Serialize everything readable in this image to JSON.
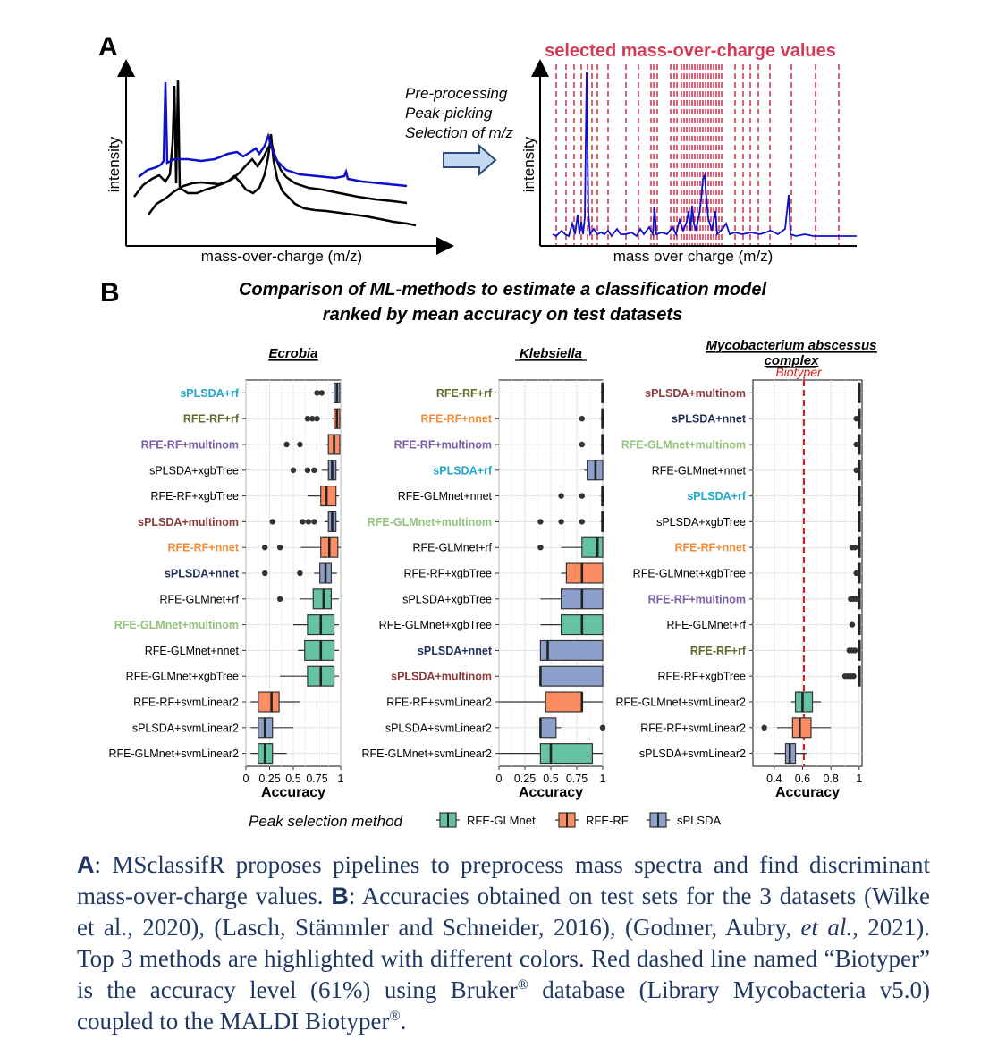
{
  "panel_a": {
    "label": "A",
    "spectra_xlabel": "mass-over-charge (m/z)",
    "spectra_ylabel": "intensity",
    "steps": [
      "Pre-processing",
      "Peak-picking",
      "Selection of m/z"
    ],
    "selected_title": "selected mass-over-charge values",
    "selected_xlabel": "mass over charge (m/z)",
    "selected_ylabel": "intensity",
    "colors": {
      "spectrum_blue": "#1010cc",
      "spectrum_black": "#000000",
      "selection_red": "#d63a55",
      "arrow_fill": "#c5d9f1",
      "arrow_stroke": "#2e4a7a"
    }
  },
  "panel_b": {
    "label": "B",
    "title_line1": "Comparison of ML-methods to estimate a classification model",
    "title_line2": "ranked by mean accuracy on test datasets",
    "legend_title": "Peak selection method",
    "legend_items": [
      {
        "key": "glm",
        "label": "RFE-GLMnet",
        "color": "#66c2a5"
      },
      {
        "key": "rf",
        "label": "RFE-RF",
        "color": "#fc8d62"
      },
      {
        "key": "spl",
        "label": "sPLSDA",
        "color": "#8da0cb"
      }
    ],
    "highlight_colors": {
      "cyan": "#1fa7c9",
      "olive": "#5c6b2a",
      "purple": "#7b5ea7",
      "brown": "#8b3a3a",
      "orange": "#f08c3a",
      "navy": "#1f2f5c",
      "green": "#93c47d",
      "default": "#000000"
    }
  },
  "chart_data": [
    {
      "type": "boxplot",
      "title": "Ecrobia",
      "xlabel": "Accuracy",
      "xlim": [
        0,
        1
      ],
      "xticks": [
        "0",
        "0.25",
        "0.5",
        "0.75",
        "1"
      ],
      "rows": [
        {
          "method": "sPLSDA+rf",
          "group": "spl",
          "label_color": "cyan",
          "whisker_low": 0.9,
          "q1": 0.93,
          "median": 0.96,
          "q3": 0.99,
          "whisker_high": 1.0,
          "outliers": [
            0.75,
            0.8
          ]
        },
        {
          "method": "RFE-RF+rf",
          "group": "rf",
          "label_color": "olive",
          "whisker_low": 0.91,
          "q1": 0.93,
          "median": 0.96,
          "q3": 0.99,
          "whisker_high": 1.0,
          "outliers": [
            0.65,
            0.7,
            0.75
          ]
        },
        {
          "method": "RFE-RF+multinom",
          "group": "rf",
          "label_color": "purple",
          "whisker_low": 0.85,
          "q1": 0.87,
          "median": 0.93,
          "q3": 0.99,
          "whisker_high": 1.0,
          "outliers": [
            0.43,
            0.57
          ]
        },
        {
          "method": "sPLSDA+xgbTree",
          "group": "spl",
          "label_color": "default",
          "whisker_low": 0.8,
          "q1": 0.87,
          "median": 0.91,
          "q3": 0.95,
          "whisker_high": 0.98,
          "outliers": [
            0.5,
            0.65,
            0.72
          ]
        },
        {
          "method": "RFE-RF+xgbTree",
          "group": "rf",
          "label_color": "default",
          "whisker_low": 0.65,
          "q1": 0.79,
          "median": 0.85,
          "q3": 0.95,
          "whisker_high": 0.98,
          "outliers": []
        },
        {
          "method": "sPLSDA+multinom",
          "group": "spl",
          "label_color": "brown",
          "whisker_low": 0.83,
          "q1": 0.87,
          "median": 0.91,
          "q3": 0.95,
          "whisker_high": 0.98,
          "outliers": [
            0.28,
            0.6,
            0.66,
            0.72
          ]
        },
        {
          "method": "RFE-RF+nnet",
          "group": "rf",
          "label_color": "orange",
          "whisker_low": 0.58,
          "q1": 0.79,
          "median": 0.88,
          "q3": 0.97,
          "whisker_high": 1.0,
          "outliers": [
            0.2,
            0.36
          ]
        },
        {
          "method": "sPLSDA+nnet",
          "group": "spl",
          "label_color": "navy",
          "whisker_low": 0.72,
          "q1": 0.78,
          "median": 0.84,
          "q3": 0.9,
          "whisker_high": 0.96,
          "outliers": [
            0.2,
            0.57
          ]
        },
        {
          "method": "RFE-GLMnet+rf",
          "group": "glm",
          "label_color": "default",
          "whisker_low": 0.57,
          "q1": 0.71,
          "median": 0.82,
          "q3": 0.9,
          "whisker_high": 0.98,
          "outliers": [
            0.36
          ]
        },
        {
          "method": "RFE-GLMnet+multinom",
          "group": "glm",
          "label_color": "green",
          "whisker_low": 0.5,
          "q1": 0.65,
          "median": 0.79,
          "q3": 0.93,
          "whisker_high": 0.98,
          "outliers": []
        },
        {
          "method": "RFE-GLMnet+nnet",
          "group": "glm",
          "label_color": "default",
          "whisker_low": 0.55,
          "q1": 0.62,
          "median": 0.79,
          "q3": 0.93,
          "whisker_high": 0.98,
          "outliers": []
        },
        {
          "method": "RFE-GLMnet+xgbTree",
          "group": "glm",
          "label_color": "default",
          "whisker_low": 0.36,
          "q1": 0.65,
          "median": 0.79,
          "q3": 0.93,
          "whisker_high": 0.98,
          "outliers": []
        },
        {
          "method": "RFE-RF+svmLinear2",
          "group": "rf",
          "label_color": "default",
          "whisker_low": 0.05,
          "q1": 0.13,
          "median": 0.27,
          "q3": 0.35,
          "whisker_high": 0.57,
          "outliers": []
        },
        {
          "method": "sPLSDA+svmLinear2",
          "group": "spl",
          "label_color": "default",
          "whisker_low": 0.05,
          "q1": 0.13,
          "median": 0.2,
          "q3": 0.28,
          "whisker_high": 0.5,
          "outliers": []
        },
        {
          "method": "RFE-GLMnet+svmLinear2",
          "group": "glm",
          "label_color": "default",
          "whisker_low": 0.05,
          "q1": 0.13,
          "median": 0.2,
          "q3": 0.28,
          "whisker_high": 0.43,
          "outliers": []
        }
      ]
    },
    {
      "type": "boxplot",
      "title": "Klebsiella",
      "xlabel": "Accuracy",
      "xlim": [
        0,
        1
      ],
      "xticks": [
        "0",
        "0.25",
        "0.5",
        "0.75",
        "1"
      ],
      "rows": [
        {
          "method": "RFE-RF+rf",
          "group": "rf",
          "label_color": "olive",
          "whisker_low": 0.98,
          "q1": 0.99,
          "median": 1.0,
          "q3": 1.0,
          "whisker_high": 1.0,
          "outliers": []
        },
        {
          "method": "RFE-RF+nnet",
          "group": "rf",
          "label_color": "orange",
          "whisker_low": 0.98,
          "q1": 0.99,
          "median": 1.0,
          "q3": 1.0,
          "whisker_high": 1.0,
          "outliers": [
            0.8
          ]
        },
        {
          "method": "RFE-RF+multinom",
          "group": "rf",
          "label_color": "purple",
          "whisker_low": 0.98,
          "q1": 0.99,
          "median": 1.0,
          "q3": 1.0,
          "whisker_high": 1.0,
          "outliers": [
            0.8
          ]
        },
        {
          "method": "sPLSDA+rf",
          "group": "spl",
          "label_color": "cyan",
          "whisker_low": 0.82,
          "q1": 0.85,
          "median": 0.93,
          "q3": 1.0,
          "whisker_high": 1.0,
          "outliers": []
        },
        {
          "method": "RFE-GLMnet+nnet",
          "group": "glm",
          "label_color": "default",
          "whisker_low": 0.98,
          "q1": 0.99,
          "median": 1.0,
          "q3": 1.0,
          "whisker_high": 1.0,
          "outliers": [
            0.6,
            0.8
          ]
        },
        {
          "method": "RFE-GLMnet+multinom",
          "group": "glm",
          "label_color": "green",
          "whisker_low": 0.98,
          "q1": 0.99,
          "median": 1.0,
          "q3": 1.0,
          "whisker_high": 1.0,
          "outliers": [
            0.4,
            0.6,
            0.8
          ]
        },
        {
          "method": "RFE-GLMnet+rf",
          "group": "glm",
          "label_color": "default",
          "whisker_low": 0.6,
          "q1": 0.8,
          "median": 0.95,
          "q3": 1.0,
          "whisker_high": 1.0,
          "outliers": [
            0.4
          ]
        },
        {
          "method": "RFE-RF+xgbTree",
          "group": "rf",
          "label_color": "default",
          "whisker_low": 0.6,
          "q1": 0.65,
          "median": 0.8,
          "q3": 1.0,
          "whisker_high": 1.0,
          "outliers": []
        },
        {
          "method": "sPLSDA+xgbTree",
          "group": "spl",
          "label_color": "default",
          "whisker_low": 0.4,
          "q1": 0.6,
          "median": 0.8,
          "q3": 1.0,
          "whisker_high": 1.0,
          "outliers": []
        },
        {
          "method": "RFE-GLMnet+xgbTree",
          "group": "glm",
          "label_color": "default",
          "whisker_low": 0.4,
          "q1": 0.6,
          "median": 0.8,
          "q3": 1.0,
          "whisker_high": 1.0,
          "outliers": []
        },
        {
          "method": "sPLSDA+nnet",
          "group": "spl",
          "label_color": "navy",
          "whisker_low": 0.4,
          "q1": 0.4,
          "median": 0.47,
          "q3": 1.0,
          "whisker_high": 1.0,
          "outliers": []
        },
        {
          "method": "sPLSDA+multinom",
          "group": "spl",
          "label_color": "brown",
          "whisker_low": 0.4,
          "q1": 0.4,
          "median": 0.4,
          "q3": 1.0,
          "whisker_high": 1.0,
          "outliers": []
        },
        {
          "method": "RFE-RF+svmLinear2",
          "group": "rf",
          "label_color": "default",
          "whisker_low": 0.0,
          "q1": 0.45,
          "median": 0.8,
          "q3": 0.8,
          "whisker_high": 1.0,
          "outliers": []
        },
        {
          "method": "sPLSDA+svmLinear2",
          "group": "spl",
          "label_color": "default",
          "whisker_low": 0.4,
          "q1": 0.4,
          "median": 0.4,
          "q3": 0.55,
          "whisker_high": 0.6,
          "outliers": [
            1.0
          ]
        },
        {
          "method": "RFE-GLMnet+svmLinear2",
          "group": "glm",
          "label_color": "default",
          "whisker_low": 0.0,
          "q1": 0.4,
          "median": 0.5,
          "q3": 0.9,
          "whisker_high": 1.0,
          "outliers": []
        }
      ]
    },
    {
      "type": "boxplot",
      "title": "Mycobacterium abscessus complex",
      "title_lines": [
        "Mycobacterium abscessus ",
        "complex"
      ],
      "xlabel": "Accuracy",
      "xlim": [
        0.25,
        1.02
      ],
      "xticks": [
        "0.4",
        "0.6",
        "0.8",
        "1"
      ],
      "reference_line": {
        "label": "Biotyper",
        "value": 0.61
      },
      "rows": [
        {
          "method": "sPLSDA+multinom",
          "group": "spl",
          "label_color": "brown",
          "whisker_low": 0.99,
          "q1": 0.995,
          "median": 1.0,
          "q3": 1.0,
          "whisker_high": 1.0,
          "outliers": []
        },
        {
          "method": "sPLSDA+nnet",
          "group": "spl",
          "label_color": "navy",
          "whisker_low": 0.99,
          "q1": 0.995,
          "median": 1.0,
          "q3": 1.0,
          "whisker_high": 1.0,
          "outliers": [
            0.98
          ]
        },
        {
          "method": "RFE-GLMnet+multinom",
          "group": "glm",
          "label_color": "green",
          "whisker_low": 0.99,
          "q1": 0.995,
          "median": 1.0,
          "q3": 1.0,
          "whisker_high": 1.0,
          "outliers": [
            0.98
          ]
        },
        {
          "method": "RFE-GLMnet+nnet",
          "group": "glm",
          "label_color": "default",
          "whisker_low": 0.99,
          "q1": 0.995,
          "median": 1.0,
          "q3": 1.0,
          "whisker_high": 1.0,
          "outliers": [
            0.98
          ]
        },
        {
          "method": "sPLSDA+rf",
          "group": "spl",
          "label_color": "cyan",
          "whisker_low": 0.99,
          "q1": 0.995,
          "median": 1.0,
          "q3": 1.0,
          "whisker_high": 1.0,
          "outliers": []
        },
        {
          "method": "sPLSDA+xgbTree",
          "group": "spl",
          "label_color": "default",
          "whisker_low": 0.99,
          "q1": 0.995,
          "median": 1.0,
          "q3": 1.0,
          "whisker_high": 1.0,
          "outliers": []
        },
        {
          "method": "RFE-RF+nnet",
          "group": "rf",
          "label_color": "orange",
          "whisker_low": 0.99,
          "q1": 0.995,
          "median": 1.0,
          "q3": 1.0,
          "whisker_high": 1.0,
          "outliers": [
            0.95,
            0.97
          ]
        },
        {
          "method": "RFE-GLMnet+xgbTree",
          "group": "glm",
          "label_color": "default",
          "whisker_low": 0.99,
          "q1": 0.995,
          "median": 1.0,
          "q3": 1.0,
          "whisker_high": 1.0,
          "outliers": [
            0.98
          ]
        },
        {
          "method": "RFE-RF+multinom",
          "group": "rf",
          "label_color": "purple",
          "whisker_low": 0.99,
          "q1": 0.995,
          "median": 1.0,
          "q3": 1.0,
          "whisker_high": 1.0,
          "outliers": [
            0.94,
            0.96,
            0.98
          ]
        },
        {
          "method": "RFE-GLMnet+rf",
          "group": "glm",
          "label_color": "default",
          "whisker_low": 0.99,
          "q1": 0.995,
          "median": 1.0,
          "q3": 1.0,
          "whisker_high": 1.0,
          "outliers": [
            0.95
          ]
        },
        {
          "method": "RFE-RF+rf",
          "group": "rf",
          "label_color": "olive",
          "whisker_low": 0.99,
          "q1": 0.995,
          "median": 1.0,
          "q3": 1.0,
          "whisker_high": 1.0,
          "outliers": [
            0.93,
            0.95,
            0.97
          ]
        },
        {
          "method": "RFE-RF+xgbTree",
          "group": "rf",
          "label_color": "default",
          "whisker_low": 0.99,
          "q1": 0.995,
          "median": 1.0,
          "q3": 1.0,
          "whisker_high": 1.0,
          "outliers": [
            0.9,
            0.92,
            0.94,
            0.96
          ]
        },
        {
          "method": "RFE-GLMnet+svmLinear2",
          "group": "glm",
          "label_color": "default",
          "whisker_low": 0.52,
          "q1": 0.55,
          "median": 0.6,
          "q3": 0.67,
          "whisker_high": 0.73,
          "outliers": []
        },
        {
          "method": "RFE-RF+svmLinear2",
          "group": "rf",
          "label_color": "default",
          "whisker_low": 0.42,
          "q1": 0.53,
          "median": 0.58,
          "q3": 0.66,
          "whisker_high": 0.8,
          "outliers": [
            0.33
          ]
        },
        {
          "method": "sPLSDA+svmLinear2",
          "group": "spl",
          "label_color": "default",
          "whisker_low": 0.4,
          "q1": 0.48,
          "median": 0.51,
          "q3": 0.55,
          "whisker_high": 0.63,
          "outliers": []
        }
      ]
    }
  ],
  "caption": {
    "a_label": "A",
    "a_text": ": MSclassifR proposes pipelines to preprocess mass spectra and find discriminant mass-over-charge values. ",
    "b_label": "B",
    "b_text1": ": Accuracies obtained on test sets for the 3 datasets (Wilke et al., 2020), (Lasch, Stämmler and Schneider, 2016), (Godmer, Aubry, ",
    "b_italic": "et al.",
    "b_text2": ", 2021). Top 3 methods are highlighted with different colors. Red dashed line named “Biotyper” is the accuracy level (61%) using Bruker",
    "reg1": "®",
    "b_text3": " database (Library Mycobacteria v5.0) coupled to the MALDI Biotyper",
    "reg2": "®",
    "b_text4": "."
  }
}
